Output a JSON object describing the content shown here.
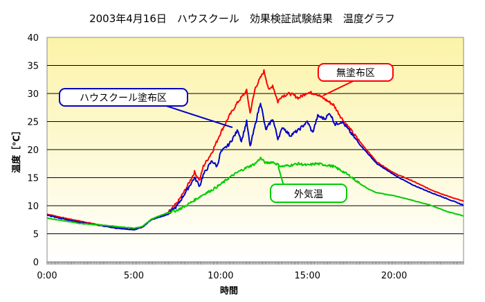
{
  "chart_data": {
    "type": "line",
    "title": "2003年4月16日　ハウスクール　効果検証試験結果　温度グラフ",
    "xlabel": "時間",
    "ylabel": "温度［℃］",
    "ylim": [
      0,
      40
    ],
    "yticks": [
      "0",
      "5",
      "10",
      "15",
      "20",
      "25",
      "30",
      "35",
      "40"
    ],
    "xticks": [
      "0:00",
      "5:00",
      "10:00",
      "15:00",
      "20:00"
    ],
    "xlim_hours": [
      0,
      24
    ],
    "grid": true,
    "background": "yellow-gradient",
    "series": [
      {
        "name": "無塗布区",
        "color": "#ff0000",
        "points": [
          [
            0,
            8.5
          ],
          [
            1,
            7.8
          ],
          [
            2,
            7.2
          ],
          [
            3,
            6.6
          ],
          [
            4,
            6.0
          ],
          [
            5,
            5.8
          ],
          [
            5.5,
            6.2
          ],
          [
            6,
            7.5
          ],
          [
            7,
            8.8
          ],
          [
            7.5,
            10.5
          ],
          [
            8,
            13.0
          ],
          [
            8.5,
            16.0
          ],
          [
            8.8,
            14.5
          ],
          [
            9,
            17.0
          ],
          [
            9.5,
            19.5
          ],
          [
            10,
            23.0
          ],
          [
            10.5,
            26.0
          ],
          [
            11,
            28.5
          ],
          [
            11.5,
            30.5
          ],
          [
            11.7,
            26.5
          ],
          [
            12,
            31.0
          ],
          [
            12.5,
            34.0
          ],
          [
            12.8,
            30.5
          ],
          [
            13,
            31.5
          ],
          [
            13.3,
            28.5
          ],
          [
            13.5,
            29.5
          ],
          [
            14,
            30.0
          ],
          [
            14.5,
            29.2
          ],
          [
            15,
            30.2
          ],
          [
            15.5,
            30.0
          ],
          [
            16,
            29.0
          ],
          [
            16.5,
            28.0
          ],
          [
            17,
            25.5
          ],
          [
            18,
            21.5
          ],
          [
            19,
            17.8
          ],
          [
            20,
            15.8
          ],
          [
            21,
            14.5
          ],
          [
            22,
            13.0
          ],
          [
            23,
            11.8
          ],
          [
            24,
            10.8
          ]
        ]
      },
      {
        "name": "ハウスクール塗布区",
        "color": "#0000cc",
        "points": [
          [
            0,
            8.3
          ],
          [
            1,
            7.6
          ],
          [
            2,
            7.0
          ],
          [
            3,
            6.5
          ],
          [
            4,
            6.0
          ],
          [
            5,
            5.7
          ],
          [
            5.5,
            6.2
          ],
          [
            6,
            7.5
          ],
          [
            7,
            8.5
          ],
          [
            7.5,
            10.0
          ],
          [
            8,
            12.5
          ],
          [
            8.5,
            15.0
          ],
          [
            8.8,
            13.5
          ],
          [
            9,
            15.5
          ],
          [
            9.5,
            18.0
          ],
          [
            9.8,
            17.0
          ],
          [
            10,
            19.5
          ],
          [
            10.5,
            21.0
          ],
          [
            11,
            23.5
          ],
          [
            11.2,
            21.5
          ],
          [
            11.5,
            25.0
          ],
          [
            11.7,
            20.5
          ],
          [
            12,
            24.5
          ],
          [
            12.3,
            28.5
          ],
          [
            12.6,
            23.5
          ],
          [
            13,
            25.5
          ],
          [
            13.3,
            22.0
          ],
          [
            13.6,
            24.0
          ],
          [
            14,
            22.5
          ],
          [
            14.5,
            23.5
          ],
          [
            15,
            25.0
          ],
          [
            15.3,
            23.0
          ],
          [
            15.6,
            26.0
          ],
          [
            16,
            25.5
          ],
          [
            16.3,
            26.5
          ],
          [
            16.6,
            24.5
          ],
          [
            17,
            25.0
          ],
          [
            17.5,
            23.0
          ],
          [
            18,
            21.0
          ],
          [
            19,
            17.5
          ],
          [
            20,
            15.5
          ],
          [
            21,
            13.8
          ],
          [
            22,
            12.5
          ],
          [
            23,
            11.3
          ],
          [
            24,
            10.1
          ]
        ]
      },
      {
        "name": "外気温",
        "color": "#00cc00",
        "points": [
          [
            0,
            7.8
          ],
          [
            1,
            7.3
          ],
          [
            2,
            6.8
          ],
          [
            3,
            6.6
          ],
          [
            4,
            6.3
          ],
          [
            5,
            6.0
          ],
          [
            5.5,
            6.3
          ],
          [
            6,
            7.6
          ],
          [
            7,
            8.8
          ],
          [
            7.5,
            9.2
          ],
          [
            8,
            10.0
          ],
          [
            8.5,
            11.0
          ],
          [
            9,
            12.0
          ],
          [
            9.5,
            12.8
          ],
          [
            10,
            13.8
          ],
          [
            10.5,
            15.0
          ],
          [
            11,
            16.0
          ],
          [
            11.5,
            16.8
          ],
          [
            12,
            17.5
          ],
          [
            12.3,
            18.5
          ],
          [
            12.6,
            17.6
          ],
          [
            13,
            17.8
          ],
          [
            13.5,
            17.0
          ],
          [
            14,
            17.2
          ],
          [
            14.5,
            17.5
          ],
          [
            15,
            17.2
          ],
          [
            15.5,
            17.5
          ],
          [
            16,
            17.3
          ],
          [
            16.5,
            17.0
          ],
          [
            17,
            16.2
          ],
          [
            17.5,
            15.2
          ],
          [
            18,
            14.0
          ],
          [
            18.5,
            13.0
          ],
          [
            19,
            12.3
          ],
          [
            20,
            11.8
          ],
          [
            21,
            11.0
          ],
          [
            22,
            10.2
          ],
          [
            23,
            9.0
          ],
          [
            24,
            8.2
          ]
        ]
      }
    ],
    "callouts": [
      {
        "text": "無塗布区",
        "series": "無塗布区",
        "border": "#ff0000"
      },
      {
        "text": "ハウスクール塗布区",
        "series": "ハウスクール塗布区",
        "border": "#0000cc"
      },
      {
        "text": "外気温",
        "series": "外気温",
        "border": "#00cc00"
      }
    ]
  }
}
